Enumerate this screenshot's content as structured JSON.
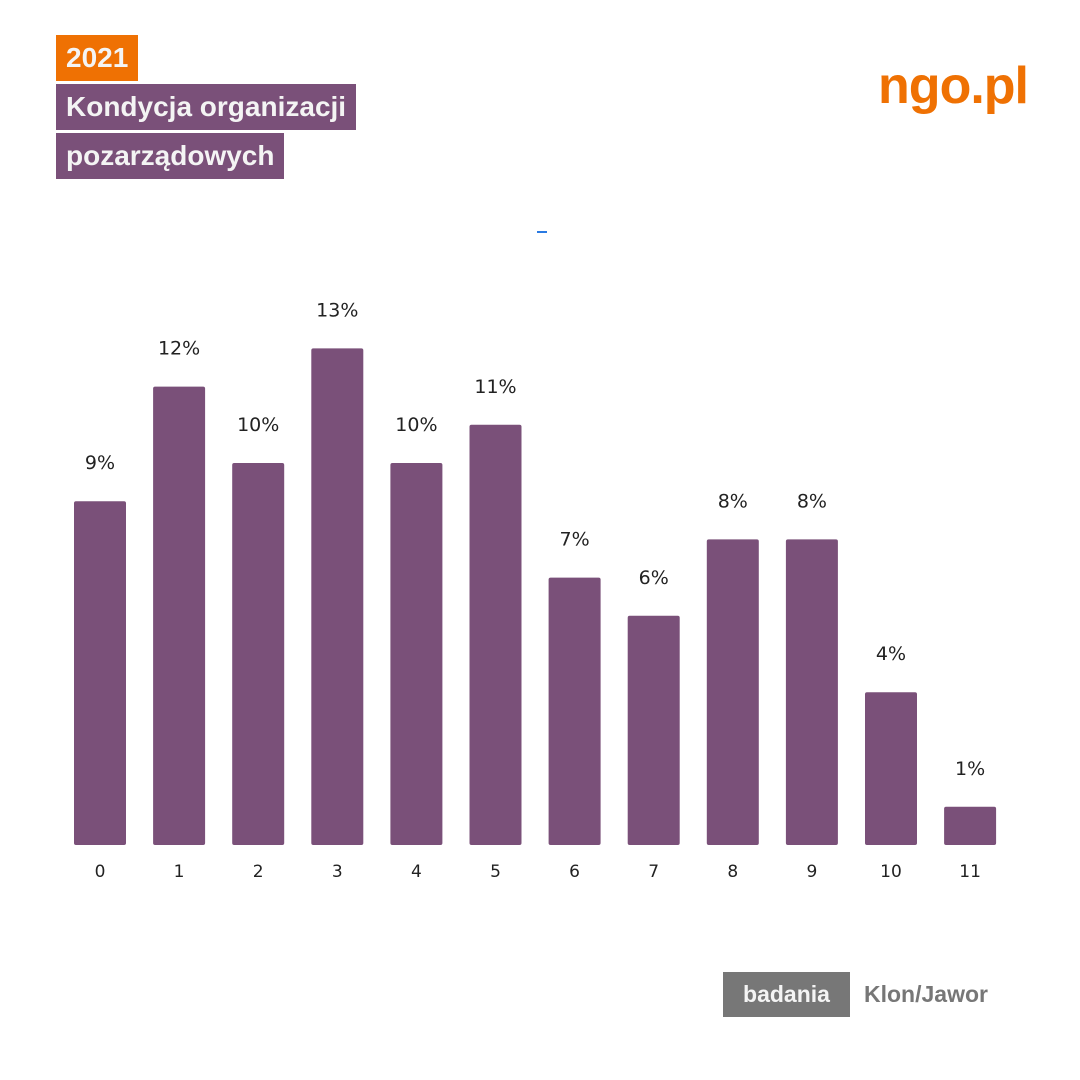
{
  "header": {
    "year": "2021",
    "title_line1": "Kondycja organizacji",
    "title_line2": "pozarządowych",
    "logo": "ngo.pl"
  },
  "footer": {
    "badge": "badania",
    "source": "Klon/Jawor"
  },
  "colors": {
    "bar": "#7a5079",
    "orange": "#ef7103",
    "purple": "#7a5079"
  },
  "chart_data": {
    "type": "bar",
    "categories": [
      "0",
      "1",
      "2",
      "3",
      "4",
      "5",
      "6",
      "7",
      "8",
      "9",
      "10",
      "11"
    ],
    "values": [
      9,
      12,
      10,
      13,
      10,
      11,
      7,
      6,
      8,
      8,
      4,
      1
    ],
    "labels": [
      "9%",
      "12%",
      "10%",
      "13%",
      "10%",
      "11%",
      "7%",
      "6%",
      "8%",
      "8%",
      "4%",
      "1%"
    ],
    "title": "",
    "xlabel": "",
    "ylabel": "",
    "ylim": [
      0,
      13
    ],
    "grid": false
  }
}
